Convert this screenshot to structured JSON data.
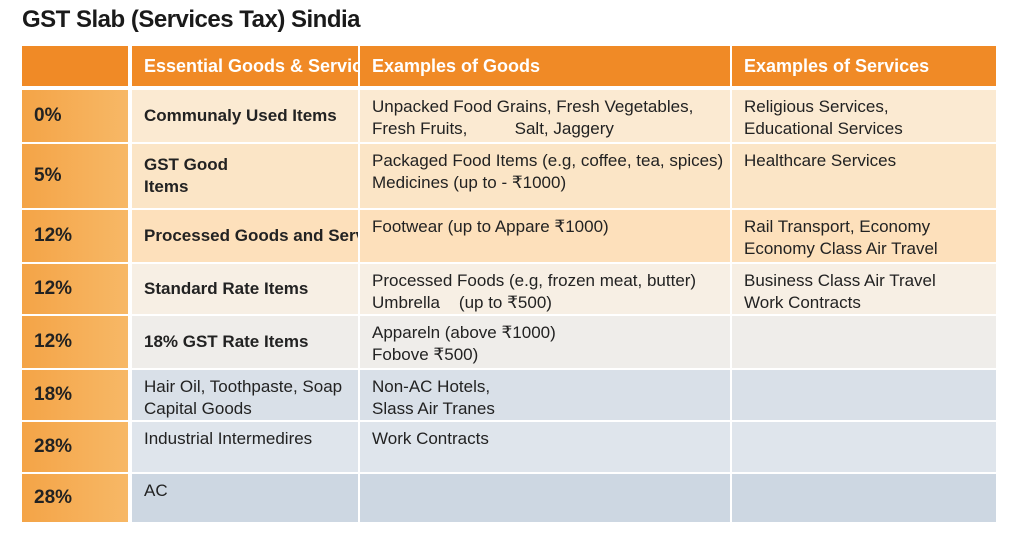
{
  "header": {
    "title": "GST Slab (Services Tax) Sindia"
  },
  "table": {
    "columns": [
      "",
      "Essential Goods & Services",
      "Examples of Goods",
      "Examples of Services"
    ],
    "rows": [
      [
        "0%",
        [
          "Communaly Used Items"
        ],
        [
          "Unpacked Food Grains, Fresh Vegetables,",
          "Fresh Fruits,          Salt, Jaggery"
        ],
        [
          "Religious Services,",
          "Educational Services"
        ]
      ],
      [
        "5%",
        [
          "GST Good",
          "Items"
        ],
        [
          "Packaged Food Items (e.g, coffee, tea, spices)",
          "Medicines (up to - ₹1000)"
        ],
        [
          "Healthcare Services"
        ]
      ],
      [
        "12%",
        [
          "Processed Goods and Services"
        ],
        [
          "Footwear (up to Appare ₹1000)"
        ],
        [
          "Rail Transport, Economy",
          "Economy Class Air Travel"
        ]
      ],
      [
        "12%",
        [
          "Standard Rate Items"
        ],
        [
          "Processed Foods (e.g, frozen meat, butter)",
          "Umbrella    (up to ₹500)"
        ],
        [
          "Business Class Air Travel",
          "Work Contracts"
        ]
      ],
      [
        "12%",
        [
          "18% GST Rate Items"
        ],
        [
          "Appareln (above ₹1000)",
          "Fobove ₹500)"
        ],
        []
      ],
      [
        "18%",
        [
          "Hair Oil, Toothpaste, Soap",
          "Capital Goods"
        ],
        [
          "Non-AC Hotels,",
          "Slass Air Tranes"
        ],
        []
      ],
      [
        "28%",
        [
          "Industrial Intermedires"
        ],
        [
          "Work Contracts"
        ],
        []
      ],
      [
        "28%",
        [
          "AC"
        ],
        [],
        []
      ]
    ]
  }
}
